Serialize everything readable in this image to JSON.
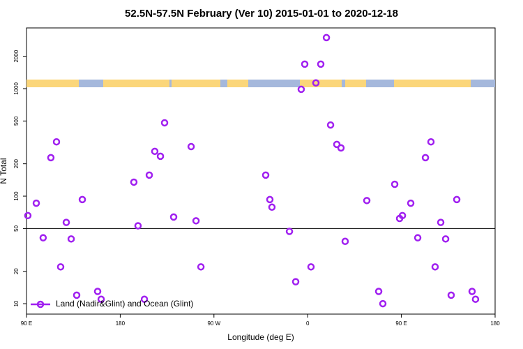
{
  "chart_data": {
    "type": "scatter",
    "log_y": true,
    "title": "52.5N-57.5N February (Ver 10)   2015-01-01 to 2020-12-18",
    "x_label": "Longitude (deg E)",
    "y_label": "N Total",
    "xlim": [
      90,
      540
    ],
    "xticks": [
      {
        "value": 90,
        "label": "90 E"
      },
      180,
      {
        "value": 270,
        "label": "90 W"
      },
      {
        "value": 360,
        "label": "0"
      },
      {
        "value": 450,
        "label": "90 E"
      },
      {
        "value": 540,
        "label": "180"
      }
    ],
    "ylim": [
      8,
      3670
    ],
    "yticks": [
      10,
      20,
      50,
      100,
      200,
      500,
      1000,
      2000
    ],
    "reference_line": 50,
    "legend": "bottom-left",
    "series": [
      {
        "name": "Land (Nadir&Glint) and Ocean (Glint)",
        "color": "#a020f0",
        "x": [
          91.3,
          99.4,
          106,
          113.4,
          118.8,
          122.8,
          128.2,
          132.9,
          138.2,
          143.6,
          158.3,
          161.7,
          193.1,
          197.1,
          203.2,
          207.9,
          213.2,
          218.6,
          222.6,
          231.3,
          248.1,
          252.8,
          257.5,
          319.7,
          323.7,
          325.7,
          342.5,
          348.5,
          353.8,
          357.2,
          363.2,
          367.9,
          372.6,
          378,
          382,
          388,
          392,
          396,
          416.8,
          428.2,
          432.2,
          443.6,
          448.3,
          451,
          459,
          465.7,
          473.1,
          478.4,
          482.4,
          487.8,
          492.5,
          497.8,
          503.2,
          517.9,
          521.2
        ],
        "values": [
          66,
          86,
          41,
          228,
          320,
          22,
          57,
          40,
          12,
          93,
          13,
          11,
          135,
          53,
          11,
          157,
          261,
          235,
          481,
          64,
          289,
          59,
          22,
          157,
          93,
          79,
          47,
          16,
          986,
          1690,
          22,
          1130,
          1690,
          2980,
          459,
          303,
          281,
          38,
          91,
          13,
          10,
          129,
          62,
          66,
          86,
          41,
          228,
          320,
          22,
          57,
          40,
          12,
          93,
          13,
          11
        ]
      }
    ]
  }
}
